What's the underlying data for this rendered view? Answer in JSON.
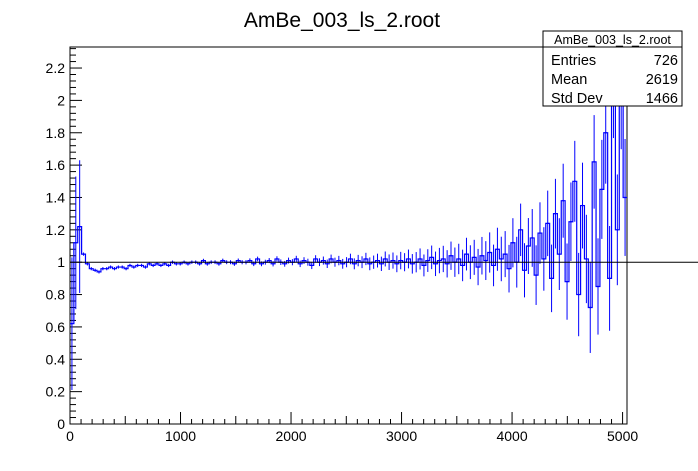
{
  "chart_data": {
    "type": "line",
    "title": "AmBe_003_ls_2.root",
    "xlabel": "",
    "ylabel": "",
    "xlim": [
      0,
      5000
    ],
    "ylim": [
      0,
      2.33
    ],
    "x_ticks": [
      "0",
      "1000",
      "2000",
      "3000",
      "4000",
      "5000"
    ],
    "y_ticks": [
      "0",
      "0.2",
      "0.4",
      "0.6",
      "0.8",
      "1",
      "1.2",
      "1.4",
      "1.6",
      "1.8",
      "2",
      "2.2"
    ],
    "reference_line_y": 1,
    "grid": false,
    "line_color": "#0000ff",
    "stats_box": {
      "title": "AmBe_003_ls_2.root",
      "position": "top-right",
      "rows": [
        {
          "label": "Entries",
          "value": "726"
        },
        {
          "label": "Mean",
          "value": "2619"
        },
        {
          "label": "Std Dev",
          "value": "1466"
        }
      ]
    },
    "series": [
      {
        "x": [
          0,
          35,
          70,
          105,
          140,
          175,
          210,
          245,
          280,
          315,
          350,
          385,
          420,
          455,
          490,
          525,
          560,
          595,
          630,
          665,
          700,
          735,
          770,
          805,
          840,
          875,
          910,
          945,
          980,
          1015,
          1050,
          1085,
          1120,
          1155,
          1190,
          1225,
          1260,
          1295,
          1330,
          1365,
          1400,
          1435,
          1470,
          1505,
          1540,
          1575,
          1610,
          1645,
          1680,
          1715,
          1750,
          1785,
          1820,
          1855,
          1890,
          1925,
          1960,
          1995,
          2030,
          2065,
          2100,
          2135,
          2170,
          2205,
          2240,
          2275,
          2310,
          2345,
          2380,
          2415,
          2450,
          2485,
          2520,
          2555,
          2590,
          2625,
          2660,
          2695,
          2730,
          2765,
          2800,
          2835,
          2870,
          2905,
          2940,
          2975,
          3010,
          3045,
          3080,
          3115,
          3150,
          3185,
          3220,
          3255,
          3290,
          3325,
          3360,
          3395,
          3430,
          3465,
          3500,
          3535,
          3570,
          3605,
          3640,
          3675,
          3710,
          3745,
          3780,
          3815,
          3850,
          3885,
          3920,
          3955,
          3990,
          4025,
          4060,
          4095,
          4130,
          4165,
          4200,
          4235,
          4270,
          4305,
          4340,
          4375,
          4410,
          4445,
          4480,
          4515,
          4550,
          4585,
          4620,
          4655,
          4690,
          4725,
          4760,
          4795,
          4830,
          4865,
          4900,
          4935,
          4970,
          5005
        ],
        "y": [
          0.62,
          1.12,
          1.22,
          1.05,
          0.99,
          0.96,
          0.95,
          0.94,
          0.96,
          0.96,
          0.97,
          0.96,
          0.97,
          0.97,
          0.96,
          0.98,
          0.97,
          0.98,
          0.98,
          0.97,
          0.99,
          0.98,
          0.99,
          0.98,
          0.99,
          0.98,
          1.0,
          0.99,
          0.99,
          1.0,
          0.99,
          1.0,
          1.0,
          0.99,
          1.01,
          0.99,
          1.0,
          1.0,
          0.99,
          1.01,
          1.0,
          1.0,
          0.99,
          1.01,
          1.0,
          1.0,
          1.01,
          0.99,
          1.02,
          0.99,
          1.0,
          1.01,
          0.99,
          1.02,
          1.0,
          0.99,
          1.01,
          1.0,
          1.02,
          0.99,
          1.01,
          1.0,
          0.98,
          1.02,
          1.0,
          1.01,
          0.99,
          1.02,
          1.0,
          1.01,
          0.99,
          1.0,
          1.02,
          0.99,
          1.01,
          1.0,
          1.02,
          0.99,
          1.0,
          1.01,
          0.99,
          1.02,
          1.0,
          1.01,
          0.99,
          1.01,
          1.0,
          1.02,
          0.99,
          1.0,
          1.02,
          0.98,
          1.01,
          1.03,
          0.99,
          1.01,
          1.02,
          0.99,
          1.04,
          1.0,
          1.02,
          0.98,
          1.05,
          1.0,
          1.03,
          0.97,
          1.04,
          1.01,
          1.06,
          0.98,
          1.08,
          1.02,
          1.05,
          0.96,
          1.12,
          1.0,
          1.2,
          0.95,
          1.1,
          1.15,
          0.92,
          1.18,
          1.02,
          1.24,
          0.9,
          1.3,
          1.05,
          1.38,
          0.88,
          1.25,
          1.5,
          0.8,
          1.35,
          1.02,
          0.72,
          1.62,
          0.85,
          1.45,
          1.8,
          0.9,
          2.1,
          1.2,
          2.05,
          1.4
        ]
      }
    ]
  }
}
